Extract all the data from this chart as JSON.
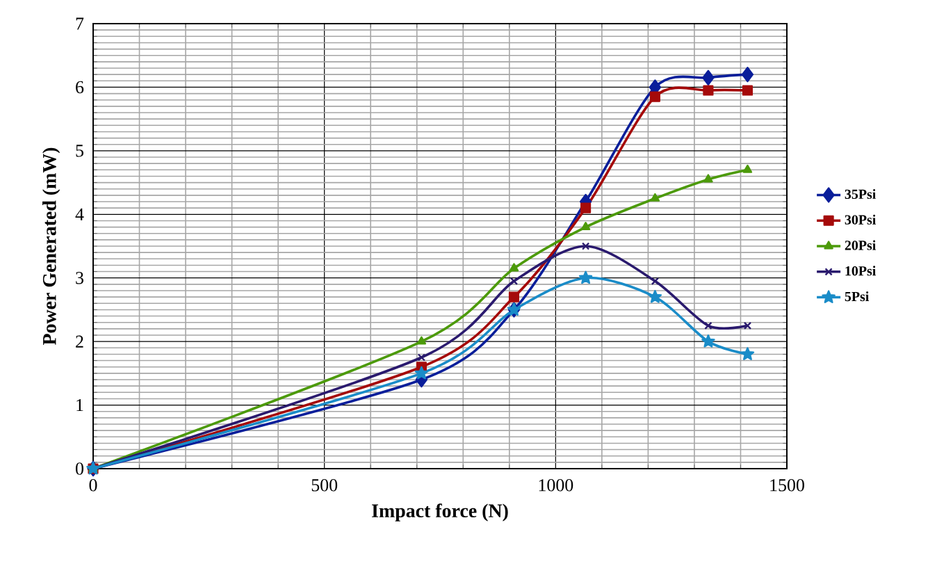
{
  "chart_data": {
    "type": "line",
    "xlabel": "Impact force (N)",
    "ylabel": "Power Generated (mW)",
    "x": [
      0,
      710,
      910,
      1065,
      1215,
      1330,
      1415
    ],
    "series": [
      {
        "name": "35Psi",
        "color": "#0a1e9a",
        "marker": "diamond",
        "values": [
          0,
          1.4,
          2.5,
          4.2,
          6.0,
          6.15,
          6.2
        ]
      },
      {
        "name": "30Psi",
        "color": "#a50a0a",
        "marker": "square",
        "values": [
          0,
          1.6,
          2.7,
          4.1,
          5.85,
          5.95,
          5.95
        ]
      },
      {
        "name": "20Psi",
        "color": "#4c9a0a",
        "marker": "triangle",
        "values": [
          0,
          2.0,
          3.15,
          3.8,
          4.25,
          4.55,
          4.7
        ]
      },
      {
        "name": "10Psi",
        "color": "#2a1a6e",
        "marker": "cross",
        "values": [
          0,
          1.75,
          2.95,
          3.5,
          2.95,
          2.25,
          2.25
        ]
      },
      {
        "name": "5Psi",
        "color": "#1a8cc8",
        "marker": "star",
        "values": [
          0,
          1.5,
          2.5,
          3.0,
          2.7,
          2.0,
          1.8
        ]
      }
    ],
    "xlim": [
      0,
      1500
    ],
    "xticks": [
      0,
      500,
      1000,
      1500
    ],
    "ylim": [
      0,
      7
    ],
    "yticks": [
      0,
      1,
      2,
      3,
      4,
      5,
      6,
      7
    ],
    "grid": true,
    "legend": "right",
    "line_style": "solid"
  }
}
